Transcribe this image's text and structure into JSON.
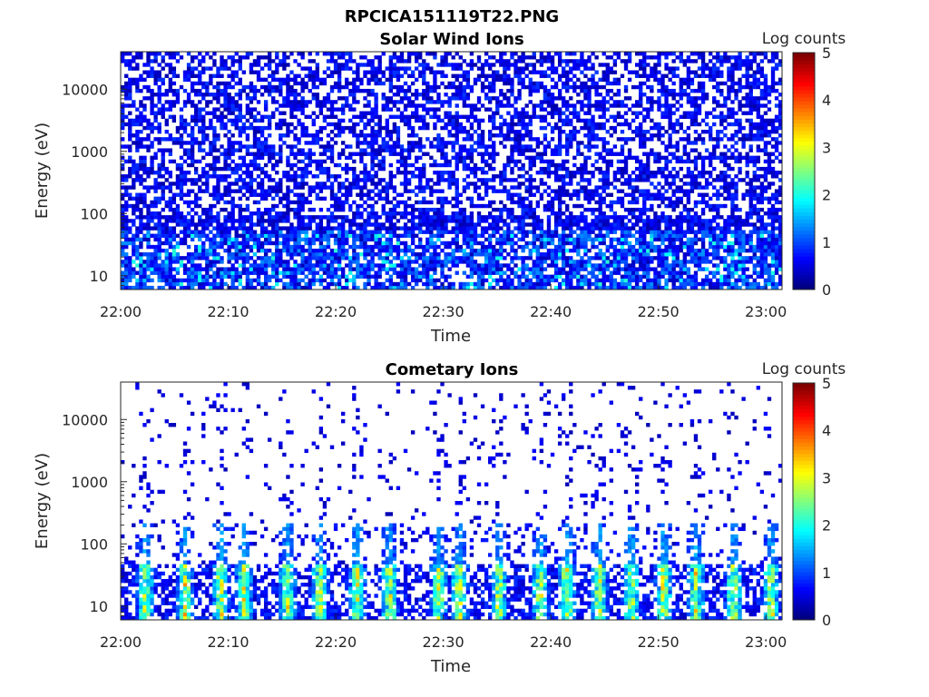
{
  "figure": {
    "suptitle": "RPCICA151119T22.PNG"
  },
  "chart_data": [
    {
      "type": "heatmap",
      "title": "Solar Wind Ions",
      "xlabel": "Time",
      "ylabel": "Energy (eV)",
      "x_ticks": [
        "22:00",
        "22:10",
        "22:20",
        "22:30",
        "22:40",
        "22:50",
        "23:00"
      ],
      "x_tick_minutes": [
        0,
        10,
        20,
        30,
        40,
        50,
        60
      ],
      "xlim_minutes": [
        0,
        61.5
      ],
      "y_scale": "log",
      "y_ticks": [
        "10",
        "100",
        "1000",
        "10000"
      ],
      "y_tick_values": [
        10,
        100,
        1000,
        10000
      ],
      "ylim": [
        6,
        40000
      ],
      "colorbar": {
        "label": "Log counts",
        "ticks": [
          "0",
          "1",
          "2",
          "3",
          "4",
          "5"
        ],
        "range": [
          0,
          5
        ],
        "colormap": "jet"
      },
      "pattern": "dense"
    },
    {
      "type": "heatmap",
      "title": "Cometary Ions",
      "xlabel": "Time",
      "ylabel": "Energy (eV)",
      "x_ticks": [
        "22:00",
        "22:10",
        "22:20",
        "22:30",
        "22:40",
        "22:50",
        "23:00"
      ],
      "x_tick_minutes": [
        0,
        10,
        20,
        30,
        40,
        50,
        60
      ],
      "xlim_minutes": [
        0,
        61.5
      ],
      "y_scale": "log",
      "y_ticks": [
        "10",
        "100",
        "1000",
        "10000"
      ],
      "y_tick_values": [
        10,
        100,
        1000,
        10000
      ],
      "ylim": [
        6,
        40000
      ],
      "colorbar": {
        "label": "Log counts",
        "ticks": [
          "0",
          "1",
          "2",
          "3",
          "4",
          "5"
        ],
        "range": [
          0,
          5
        ],
        "colormap": "jet"
      },
      "pattern": "sparse-bursts",
      "bursts_minutes": [
        2.3,
        6,
        9.3,
        11.5,
        15.5,
        18.5,
        22,
        25,
        29.6,
        31.5,
        35.2,
        39,
        41.5,
        44.5,
        47.5,
        50.5,
        53.5,
        57,
        60.5
      ]
    }
  ]
}
